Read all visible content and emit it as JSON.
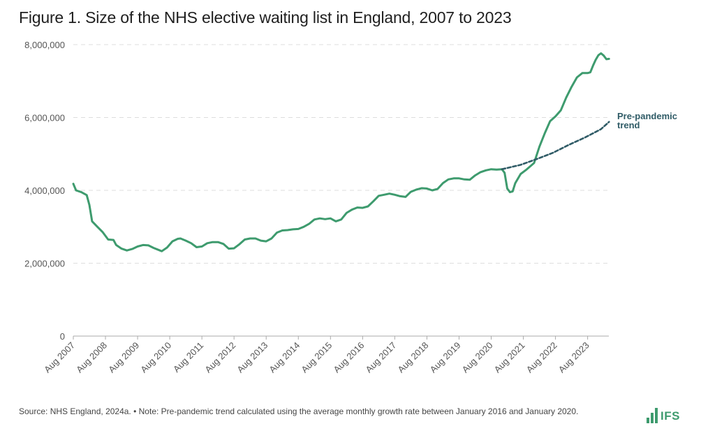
{
  "title": "Figure 1. Size of the NHS elective waiting list in England, 2007 to 2023",
  "footer": {
    "source": "Source: NHS England, 2024a. • Note: Pre-pandemic trend calculated using the average monthly growth rate between January 2016 and January 2020."
  },
  "logo": {
    "text": "IFS",
    "icon": "bar-chart-icon"
  },
  "colors": {
    "actual": "#3e9b6e",
    "trend": "#2f5b66",
    "grid": "#dddddd",
    "axis": "#aaaaaa",
    "brand": "#3e9b6e"
  },
  "chart_data": {
    "type": "line",
    "title": "Figure 1. Size of the NHS elective waiting list in England, 2007 to 2023",
    "xlabel": "",
    "ylabel": "",
    "ylim": [
      0,
      8000000
    ],
    "yticks": [
      0,
      2000000,
      4000000,
      6000000,
      8000000
    ],
    "ytick_labels": [
      "0",
      "2,000,000",
      "4,000,000",
      "6,000,000",
      "8,000,000"
    ],
    "xlim": [
      2007.583,
      2023.917
    ],
    "xticks": [
      {
        "x": 2007.583,
        "label": "Aug 2007"
      },
      {
        "x": 2008.583,
        "label": "Aug 2008"
      },
      {
        "x": 2009.583,
        "label": "Aug 2009"
      },
      {
        "x": 2010.583,
        "label": "Aug 2010"
      },
      {
        "x": 2011.583,
        "label": "Aug 2011"
      },
      {
        "x": 2012.583,
        "label": "Aug 2012"
      },
      {
        "x": 2013.583,
        "label": "Aug 2013"
      },
      {
        "x": 2014.583,
        "label": "Aug 2014"
      },
      {
        "x": 2015.583,
        "label": "Aug 2015"
      },
      {
        "x": 2016.583,
        "label": "Aug 2016"
      },
      {
        "x": 2017.583,
        "label": "Aug 2017"
      },
      {
        "x": 2018.583,
        "label": "Aug 2018"
      },
      {
        "x": 2019.583,
        "label": "Aug 2019"
      },
      {
        "x": 2020.583,
        "label": "Aug 2020"
      },
      {
        "x": 2021.583,
        "label": "Aug 2021"
      },
      {
        "x": 2022.583,
        "label": "Aug 2022"
      },
      {
        "x": 2023.583,
        "label": "Aug 2023"
      }
    ],
    "grid": "horizontal",
    "legend": "none",
    "series": [
      {
        "style": "solid",
        "points": [
          [
            2007.583,
            4180000
          ],
          [
            2007.667,
            4000000
          ],
          [
            2007.833,
            3950000
          ],
          [
            2008.0,
            3870000
          ],
          [
            2008.083,
            3600000
          ],
          [
            2008.167,
            3150000
          ],
          [
            2008.333,
            3000000
          ],
          [
            2008.5,
            2850000
          ],
          [
            2008.667,
            2650000
          ],
          [
            2008.833,
            2640000
          ],
          [
            2008.917,
            2500000
          ],
          [
            2009.083,
            2400000
          ],
          [
            2009.25,
            2350000
          ],
          [
            2009.417,
            2390000
          ],
          [
            2009.583,
            2460000
          ],
          [
            2009.75,
            2500000
          ],
          [
            2009.917,
            2490000
          ],
          [
            2010.083,
            2420000
          ],
          [
            2010.25,
            2360000
          ],
          [
            2010.333,
            2330000
          ],
          [
            2010.5,
            2430000
          ],
          [
            2010.667,
            2600000
          ],
          [
            2010.833,
            2670000
          ],
          [
            2010.917,
            2680000
          ],
          [
            2011.083,
            2620000
          ],
          [
            2011.25,
            2550000
          ],
          [
            2011.417,
            2440000
          ],
          [
            2011.583,
            2460000
          ],
          [
            2011.75,
            2550000
          ],
          [
            2011.917,
            2580000
          ],
          [
            2012.083,
            2580000
          ],
          [
            2012.25,
            2530000
          ],
          [
            2012.417,
            2400000
          ],
          [
            2012.583,
            2410000
          ],
          [
            2012.75,
            2520000
          ],
          [
            2012.917,
            2650000
          ],
          [
            2013.083,
            2680000
          ],
          [
            2013.25,
            2680000
          ],
          [
            2013.417,
            2620000
          ],
          [
            2013.583,
            2600000
          ],
          [
            2013.75,
            2680000
          ],
          [
            2013.917,
            2840000
          ],
          [
            2014.083,
            2900000
          ],
          [
            2014.25,
            2910000
          ],
          [
            2014.417,
            2930000
          ],
          [
            2014.583,
            2940000
          ],
          [
            2014.75,
            3000000
          ],
          [
            2014.917,
            3080000
          ],
          [
            2015.083,
            3200000
          ],
          [
            2015.25,
            3230000
          ],
          [
            2015.417,
            3210000
          ],
          [
            2015.583,
            3230000
          ],
          [
            2015.75,
            3150000
          ],
          [
            2015.917,
            3200000
          ],
          [
            2016.083,
            3380000
          ],
          [
            2016.25,
            3470000
          ],
          [
            2016.417,
            3530000
          ],
          [
            2016.583,
            3520000
          ],
          [
            2016.75,
            3560000
          ],
          [
            2016.917,
            3700000
          ],
          [
            2017.083,
            3850000
          ],
          [
            2017.25,
            3880000
          ],
          [
            2017.417,
            3910000
          ],
          [
            2017.583,
            3880000
          ],
          [
            2017.75,
            3840000
          ],
          [
            2017.917,
            3820000
          ],
          [
            2018.083,
            3960000
          ],
          [
            2018.25,
            4020000
          ],
          [
            2018.417,
            4060000
          ],
          [
            2018.583,
            4050000
          ],
          [
            2018.75,
            4000000
          ],
          [
            2018.917,
            4040000
          ],
          [
            2019.083,
            4200000
          ],
          [
            2019.25,
            4300000
          ],
          [
            2019.417,
            4330000
          ],
          [
            2019.583,
            4330000
          ],
          [
            2019.75,
            4300000
          ],
          [
            2019.917,
            4290000
          ],
          [
            2020.083,
            4410000
          ],
          [
            2020.25,
            4500000
          ],
          [
            2020.417,
            4550000
          ],
          [
            2020.583,
            4580000
          ],
          [
            2020.75,
            4570000
          ],
          [
            2020.917,
            4580000
          ],
          [
            2021.0,
            4480000
          ],
          [
            2021.083,
            4050000
          ],
          [
            2021.167,
            3950000
          ],
          [
            2021.25,
            3970000
          ],
          [
            2021.333,
            4200000
          ],
          [
            2021.5,
            4450000
          ],
          [
            2021.667,
            4560000
          ],
          [
            2021.917,
            4750000
          ],
          [
            2022.083,
            5200000
          ],
          [
            2022.25,
            5570000
          ],
          [
            2022.417,
            5900000
          ],
          [
            2022.583,
            6030000
          ],
          [
            2022.75,
            6200000
          ],
          [
            2022.917,
            6550000
          ],
          [
            2023.083,
            6840000
          ],
          [
            2023.25,
            7100000
          ],
          [
            2023.417,
            7220000
          ],
          [
            2023.583,
            7220000
          ],
          [
            2023.667,
            7240000
          ],
          [
            2023.75,
            7420000
          ],
          [
            2023.833,
            7580000
          ],
          [
            2023.917,
            7710000
          ],
          [
            2024.0,
            7760000
          ],
          [
            2024.083,
            7700000
          ],
          [
            2024.167,
            7600000
          ],
          [
            2024.25,
            7610000
          ]
        ]
      },
      {
        "name": "Pre-pandemic trend",
        "style": "dashed",
        "points": [
          [
            2020.917,
            4580000
          ],
          [
            2021.5,
            4700000
          ],
          [
            2022.0,
            4860000
          ],
          [
            2022.5,
            5030000
          ],
          [
            2023.0,
            5250000
          ],
          [
            2023.5,
            5450000
          ],
          [
            2024.0,
            5680000
          ],
          [
            2024.25,
            5880000
          ]
        ]
      }
    ],
    "annotations": [
      {
        "text": "Pre-pandemic",
        "series": "Pre-pandemic trend"
      },
      {
        "text": "trend",
        "series": "Pre-pandemic trend"
      }
    ]
  }
}
